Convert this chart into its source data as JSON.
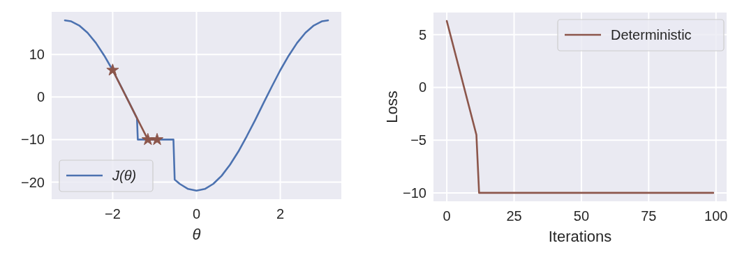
{
  "chart_data": [
    {
      "type": "line",
      "xlabel": "θ",
      "xlim": [
        -3.456,
        3.456
      ],
      "ylim": [
        -24,
        20
      ],
      "xticks": [
        {
          "value": -2,
          "label": "−2"
        },
        0,
        2
      ],
      "yticks": [
        {
          "value": -20,
          "label": "−20"
        },
        {
          "value": -10,
          "label": "−10"
        },
        0,
        10
      ],
      "grid": true,
      "legend": "bottom left",
      "series": [
        {
          "name": "J(θ)",
          "color": "#4c72b0",
          "marker": "none",
          "x": [
            -3.14,
            -3.0,
            -2.8,
            -2.6,
            -2.4,
            -2.2,
            -2.0,
            -1.8,
            -1.6,
            -1.42,
            -1.4,
            -0.55,
            -0.52,
            -0.4,
            -0.2,
            0,
            0.2,
            0.4,
            0.6,
            0.8,
            1.0,
            1.2,
            1.4,
            1.6,
            1.8,
            2.0,
            2.2,
            2.4,
            2.6,
            2.8,
            3.0,
            3.14
          ],
          "values": [
            18.0,
            17.8,
            16.8,
            15.1,
            12.7,
            9.7,
            6.3,
            2.5,
            -1.4,
            -5.0,
            -10,
            -10,
            -19.4,
            -20.4,
            -21.6,
            -22,
            -21.6,
            -20.4,
            -18.5,
            -15.9,
            -12.8,
            -9.2,
            -5.4,
            -1.4,
            2.5,
            6.3,
            9.7,
            12.7,
            15.1,
            16.8,
            17.8,
            18.0
          ]
        },
        {
          "color": "#8c564b",
          "marker": "star",
          "x": [
            -2,
            -1.16,
            -0.94
          ],
          "values": [
            6.3,
            -10,
            -10
          ]
        }
      ]
    },
    {
      "type": "line",
      "xlabel": "Iterations",
      "ylabel": "Loss",
      "xlim": [
        -4.95,
        103.95
      ],
      "ylim": [
        -10.8,
        7.1
      ],
      "xticks": [
        0,
        25,
        50,
        75,
        100
      ],
      "yticks": [
        {
          "value": -10,
          "label": "−10"
        },
        {
          "value": -5,
          "label": "−5"
        },
        0,
        5
      ],
      "grid": true,
      "legend": "top right",
      "series": [
        {
          "name": "Deterministic",
          "color": "#8c564b",
          "marker": "none",
          "x": [
            0,
            11,
            12,
            99
          ],
          "values": [
            6.3,
            -4.5,
            -10,
            -10
          ]
        }
      ]
    }
  ]
}
